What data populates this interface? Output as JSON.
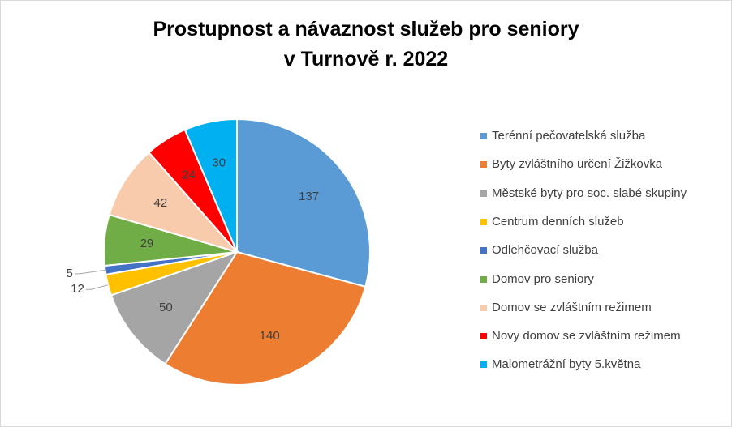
{
  "chart_data": {
    "type": "pie",
    "title": [
      "Prostupnost a návaznost služeb pro seniory",
      "v Turnově r. 2022"
    ],
    "legend_position": "right",
    "slices": [
      {
        "label": "Terénní pečovatelská služba",
        "value": 137,
        "color": "#5b9bd5"
      },
      {
        "label": "Byty zvláštního určení Žižkovka",
        "value": 140,
        "color": "#ed7d31"
      },
      {
        "label": "Městské byty pro soc. slabé skupiny",
        "value": 50,
        "color": "#a5a5a5"
      },
      {
        "label": "Centrum denních služeb",
        "value": 12,
        "color": "#ffc000"
      },
      {
        "label": "Odlehčovací služba",
        "value": 5,
        "color": "#4472c4"
      },
      {
        "label": "Domov pro seniory",
        "value": 29,
        "color": "#70ad47"
      },
      {
        "label": "Domov se zvláštním režimem",
        "value": 42,
        "color": "#f8cbad"
      },
      {
        "label": "Novy domov se zvláštním režimem",
        "value": 24,
        "color": "#ff0000"
      },
      {
        "label": "Malometrážní byty 5.května",
        "value": 30,
        "color": "#00b0f0"
      }
    ]
  }
}
